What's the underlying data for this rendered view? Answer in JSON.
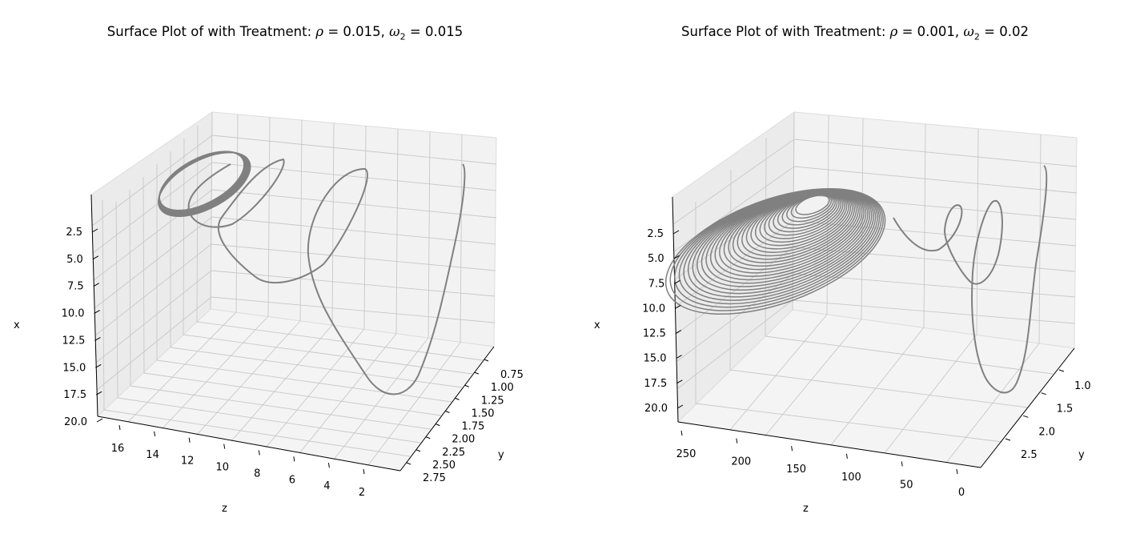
{
  "chart_data": [
    {
      "type": "line",
      "title_prefix": "Surface Plot of with Treatment: ",
      "rho_symbol": "ρ",
      "rho_value": "= 0.015",
      "omega_symbol": "ω",
      "omega_subscript": "2",
      "omega_value": "= 0.015",
      "xlabel": "x",
      "ylabel": "y",
      "zlabel": "z",
      "x_ticks": [
        "2.5",
        "5.0",
        "7.5",
        "10.0",
        "12.5",
        "15.0",
        "17.5",
        "20.0"
      ],
      "y_ticks": [
        "0.75",
        "1.00",
        "1.25",
        "1.50",
        "1.75",
        "2.00",
        "2.25",
        "2.50",
        "2.75"
      ],
      "z_ticks": [
        "16",
        "14",
        "12",
        "10",
        "8",
        "6",
        "4",
        "2"
      ],
      "xlim": [
        0.5,
        21.0
      ],
      "ylim": [
        0.6,
        2.8
      ],
      "zlim": [
        0.5,
        17.5
      ],
      "series": [
        {
          "style": "damped_spiral",
          "color": "#808080",
          "points": [
            {
              "x": 20.0,
              "y": 2.65,
              "z": 1.6
            },
            {
              "x": 2.0,
              "y": 0.75,
              "z": 2.1
            },
            {
              "x": 10.5,
              "y": 1.7,
              "z": 7.2
            },
            {
              "x": 3.0,
              "y": 0.9,
              "z": 10.0
            },
            {
              "x": 5.0,
              "y": 1.3,
              "z": 13.6
            },
            {
              "x": 3.4,
              "y": 1.0,
              "z": 14.2
            }
          ]
        }
      ]
    },
    {
      "type": "line",
      "title_prefix": "Surface Plot of with Treatment: ",
      "rho_symbol": "ρ",
      "rho_value": "= 0.001",
      "omega_symbol": "ω",
      "omega_subscript": "2",
      "omega_value": "= 0.02",
      "xlabel": "x",
      "ylabel": "y",
      "zlabel": "z",
      "x_ticks": [
        "2.5",
        "5.0",
        "7.5",
        "10.0",
        "12.5",
        "15.0",
        "17.5",
        "20.0"
      ],
      "y_ticks": [
        "1.0",
        "1.5",
        "2.0",
        "2.5"
      ],
      "z_ticks": [
        "250",
        "200",
        "150",
        "100",
        "50",
        "0"
      ],
      "xlim": [
        0.5,
        21.0
      ],
      "ylim": [
        0.7,
        2.8
      ],
      "zlim": [
        -10,
        270
      ],
      "series": [
        {
          "style": "growing_spiral",
          "color": "#808080",
          "points": [
            {
              "x": 20.0,
              "y": 2.6,
              "z": 5
            },
            {
              "x": 3.0,
              "y": 1.0,
              "z": 12
            },
            {
              "x": 12.0,
              "y": 1.9,
              "z": 30
            },
            {
              "x": 6.0,
              "y": 1.2,
              "z": 85
            },
            {
              "x": 5.0,
              "y": 1.2,
              "z": 150
            },
            {
              "x": 4.0,
              "y": 1.1,
              "z": 230
            }
          ]
        }
      ]
    }
  ]
}
